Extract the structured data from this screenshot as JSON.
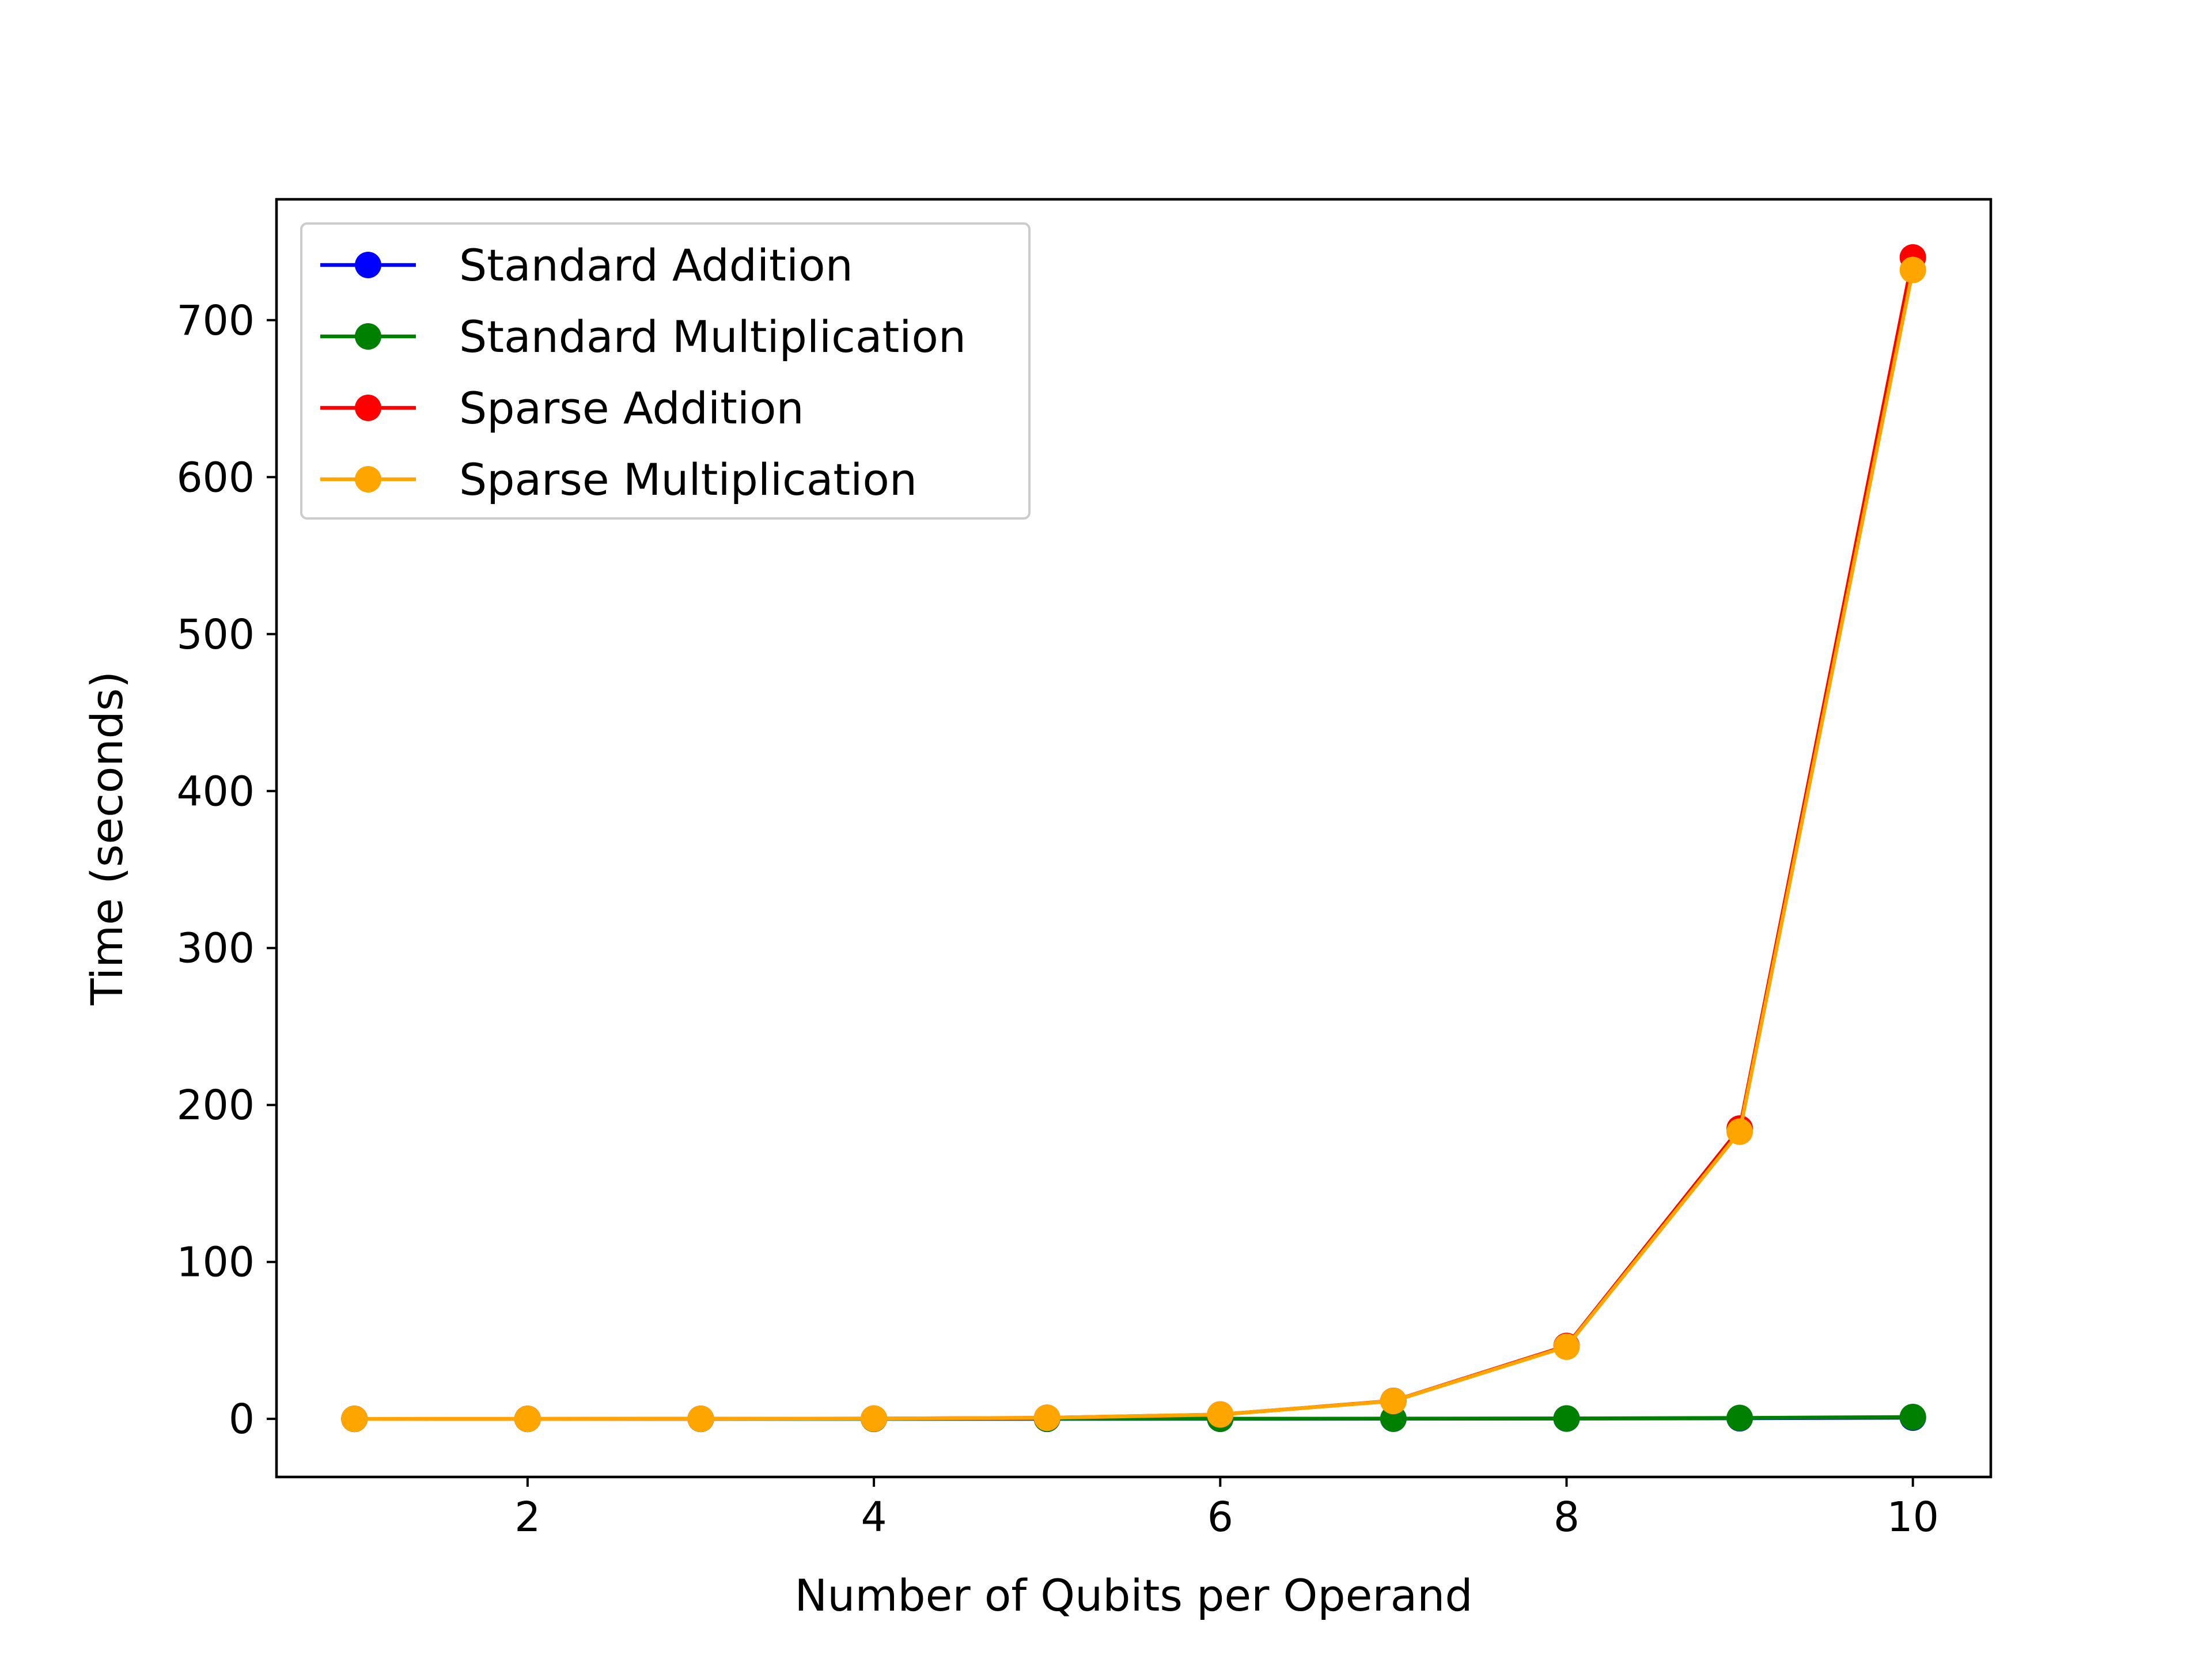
{
  "chart_data": {
    "type": "line",
    "xlabel": "Number of Qubits per Operand",
    "ylabel": "Time (seconds)",
    "xlim": [
      0.55,
      10.45
    ],
    "ylim": [
      -37,
      777
    ],
    "x_ticks": [
      2,
      4,
      6,
      8,
      10
    ],
    "y_ticks": [
      0,
      100,
      200,
      300,
      400,
      500,
      600,
      700
    ],
    "grid": false,
    "legend_position": "upper-left",
    "x": [
      1,
      2,
      3,
      4,
      5,
      6,
      7,
      8,
      9,
      10
    ],
    "series": [
      {
        "name": "Standard Addition",
        "color": "#0000ff",
        "values": [
          0.01,
          0.01,
          0.01,
          0.02,
          0.03,
          0.05,
          0.1,
          0.2,
          0.4,
          0.8
        ]
      },
      {
        "name": "Standard Multiplication",
        "color": "#008000",
        "values": [
          0.01,
          0.01,
          0.02,
          0.03,
          0.05,
          0.1,
          0.2,
          0.3,
          0.6,
          1.2
        ]
      },
      {
        "name": "Sparse Addition",
        "color": "#ff0000",
        "values": [
          0.01,
          0.02,
          0.05,
          0.2,
          0.7,
          2.8,
          11.5,
          46.5,
          185,
          740
        ]
      },
      {
        "name": "Sparse Multiplication",
        "color": "#ffa500",
        "values": [
          0.01,
          0.02,
          0.05,
          0.2,
          0.7,
          2.8,
          11.4,
          46,
          183,
          732
        ]
      }
    ]
  }
}
